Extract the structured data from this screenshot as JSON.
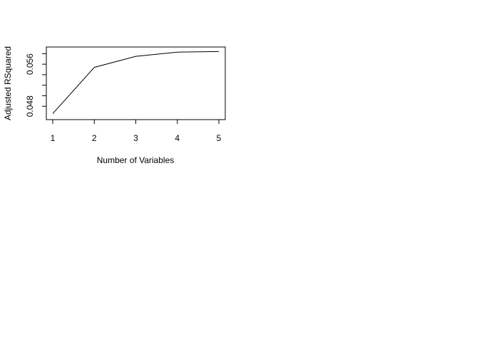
{
  "chart_data": {
    "type": "line",
    "title": "",
    "xlabel": "Number of Variables",
    "ylabel": "Adjusted RSquared",
    "x": [
      1,
      2,
      3,
      4,
      5
    ],
    "y": [
      0.0466,
      0.0554,
      0.0575,
      0.0583,
      0.0584
    ],
    "xlim": [
      1,
      5
    ],
    "ylim": [
      0.046,
      0.059
    ],
    "x_ticks": [
      1,
      2,
      3,
      4,
      5
    ],
    "y_ticks": [
      0.048,
      0.05,
      0.052,
      0.054,
      0.056,
      0.058
    ],
    "y_tick_labels": [
      "0.048",
      "",
      "",
      "",
      "0.056",
      ""
    ],
    "grid": false,
    "legend": "none",
    "line_color": "#000000"
  }
}
